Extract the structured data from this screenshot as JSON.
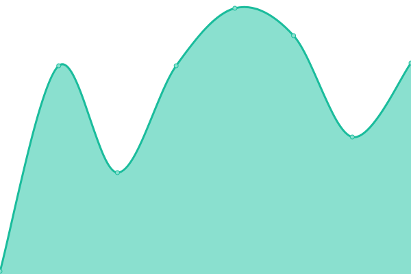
{
  "chart_data": {
    "type": "area",
    "x": [
      0,
      1,
      2,
      3,
      4,
      5,
      6,
      7
    ],
    "values": [
      1,
      76,
      37,
      76,
      97,
      87,
      50,
      77
    ],
    "ylim": [
      0,
      100
    ],
    "xlim": [
      0,
      7
    ],
    "grid": false,
    "axes_visible": false,
    "legend": "none",
    "curve": "smooth",
    "colors": {
      "line": "#1abc9c",
      "fill": "#8ae0cf",
      "marker": "#8ae0cf"
    }
  }
}
